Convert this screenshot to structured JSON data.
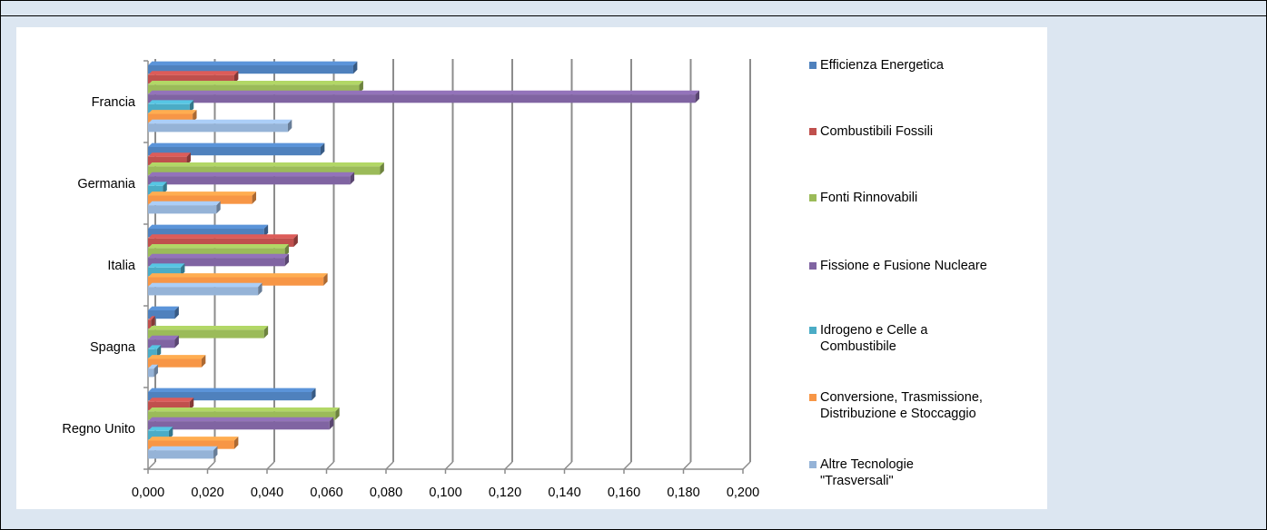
{
  "chart_data": {
    "type": "bar",
    "orientation": "horizontal",
    "style": "3d-clustered",
    "categories": [
      "Francia",
      "Germania",
      "Italia",
      "Spagna",
      "Regno Unito"
    ],
    "xlim": [
      0,
      0.2
    ],
    "xticks": [
      "0,000",
      "0,020",
      "0,040",
      "0,060",
      "0,080",
      "0,100",
      "0,120",
      "0,140",
      "0,160",
      "0,180",
      "0,200"
    ],
    "grid": true,
    "legend_position": "right",
    "series": [
      {
        "name": "Efficienza Energetica",
        "color": "#4f81bd",
        "values": [
          0.069,
          0.058,
          0.039,
          0.009,
          0.055
        ]
      },
      {
        "name": "Combustibili Fossili",
        "color": "#c0504d",
        "values": [
          0.029,
          0.013,
          0.049,
          0.001,
          0.014
        ]
      },
      {
        "name": "Fonti Rinnovabili",
        "color": "#9bbb59",
        "values": [
          0.071,
          0.078,
          0.046,
          0.039,
          0.063
        ]
      },
      {
        "name": "Fissione e Fusione Nucleare",
        "color": "#8064a2",
        "values": [
          0.184,
          0.068,
          0.046,
          0.009,
          0.061
        ]
      },
      {
        "name": "Idrogeno e Celle a Combustibile",
        "color": "#4bacc6",
        "values": [
          0.014,
          0.005,
          0.011,
          0.003,
          0.007
        ]
      },
      {
        "name": "Conversione, Trasmissione, Distribuzione e Stoccaggio",
        "color": "#f79646",
        "values": [
          0.015,
          0.035,
          0.059,
          0.018,
          0.029
        ]
      },
      {
        "name": "Altre Tecnologie \"Trasversali\"",
        "color": "#95b3d7",
        "values": [
          0.047,
          0.023,
          0.037,
          0.002,
          0.022
        ]
      }
    ]
  },
  "legend_labels": [
    "Efficienza Energetica",
    "Combustibili Fossili",
    "Fonti Rinnovabili",
    "Fissione e Fusione Nucleare",
    "Idrogeno e Celle a\nCombustibile",
    "Conversione, Trasmissione,\nDistribuzione e Stoccaggio",
    "Altre Tecnologie\n\"Trasversali\""
  ]
}
